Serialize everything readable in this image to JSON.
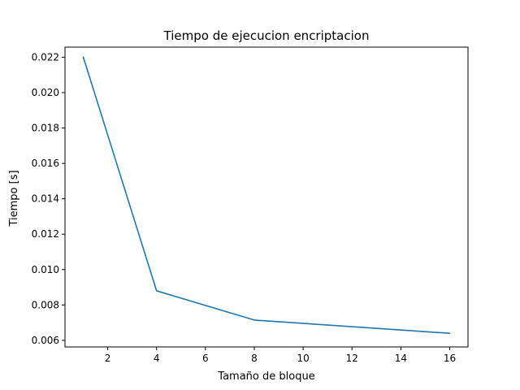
{
  "chart_data": {
    "type": "line",
    "title": "Tiempo de ejecucion encriptacion",
    "xlabel": "Tamaño de bloque",
    "ylabel": "Tiempo [s]",
    "xlim": [
      0.25,
      16.75
    ],
    "ylim": [
      0.00563,
      0.02257
    ],
    "xticks": [
      2,
      4,
      6,
      8,
      10,
      12,
      14,
      16
    ],
    "xtick_labels": [
      "2",
      "4",
      "6",
      "8",
      "10",
      "12",
      "14",
      "16"
    ],
    "yticks": [
      0.006,
      0.008,
      0.01,
      0.012,
      0.014,
      0.016,
      0.018,
      0.02,
      0.022
    ],
    "ytick_labels": [
      "0.006",
      "0.008",
      "0.010",
      "0.012",
      "0.014",
      "0.016",
      "0.018",
      "0.020",
      "0.022"
    ],
    "grid": false,
    "series": [
      {
        "color": "#1f77b4",
        "x": [
          1,
          4,
          8,
          16
        ],
        "y": [
          0.022,
          0.0088,
          0.00715,
          0.0064
        ]
      }
    ]
  }
}
